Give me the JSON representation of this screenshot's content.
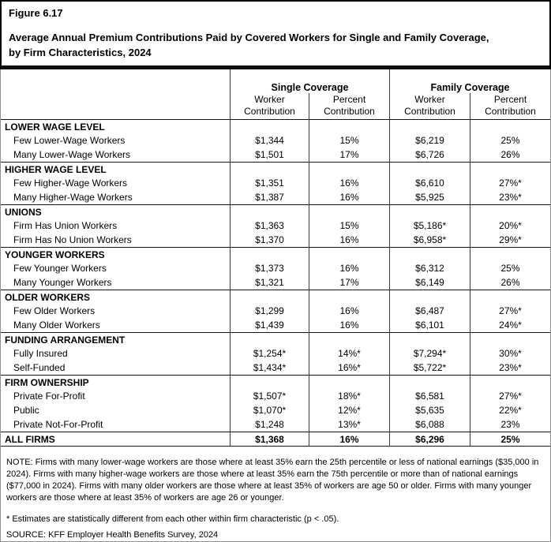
{
  "figure": {
    "number": "Figure 6.17",
    "title": "Average Annual Premium Contributions Paid by Covered Workers for Single and Family Coverage, by Firm Characteristics, 2024"
  },
  "table": {
    "col_groups": [
      {
        "label": "Single Coverage"
      },
      {
        "label": "Family Coverage"
      }
    ],
    "sub_headers": [
      "Worker Contribution",
      "Percent Contribution",
      "Worker Contribution",
      "Percent Contribution"
    ],
    "sections": [
      {
        "header": "LOWER WAGE LEVEL",
        "rows": [
          {
            "label": "Few Lower-Wage Workers",
            "values": [
              "$1,344",
              "15%",
              "$6,219",
              "25%"
            ]
          },
          {
            "label": "Many Lower-Wage Workers",
            "values": [
              "$1,501",
              "17%",
              "$6,726",
              "26%"
            ]
          }
        ]
      },
      {
        "header": "HIGHER WAGE LEVEL",
        "rows": [
          {
            "label": "Few Higher-Wage Workers",
            "values": [
              "$1,351",
              "16%",
              "$6,610",
              "27%*"
            ]
          },
          {
            "label": "Many Higher-Wage Workers",
            "values": [
              "$1,387",
              "16%",
              "$5,925",
              "23%*"
            ]
          }
        ]
      },
      {
        "header": "UNIONS",
        "rows": [
          {
            "label": "Firm Has Union Workers",
            "values": [
              "$1,363",
              "15%",
              "$5,186*",
              "20%*"
            ]
          },
          {
            "label": "Firm Has No Union Workers",
            "values": [
              "$1,370",
              "16%",
              "$6,958*",
              "29%*"
            ]
          }
        ]
      },
      {
        "header": "YOUNGER WORKERS",
        "rows": [
          {
            "label": "Few Younger Workers",
            "values": [
              "$1,373",
              "16%",
              "$6,312",
              "25%"
            ]
          },
          {
            "label": "Many Younger Workers",
            "values": [
              "$1,321",
              "17%",
              "$6,149",
              "26%"
            ]
          }
        ]
      },
      {
        "header": "OLDER WORKERS",
        "rows": [
          {
            "label": "Few Older Workers",
            "values": [
              "$1,299",
              "16%",
              "$6,487",
              "27%*"
            ]
          },
          {
            "label": "Many Older Workers",
            "values": [
              "$1,439",
              "16%",
              "$6,101",
              "24%*"
            ]
          }
        ]
      },
      {
        "header": "FUNDING ARRANGEMENT",
        "rows": [
          {
            "label": "Fully Insured",
            "values": [
              "$1,254*",
              "14%*",
              "$7,294*",
              "30%*"
            ]
          },
          {
            "label": "Self-Funded",
            "values": [
              "$1,434*",
              "16%*",
              "$5,722*",
              "23%*"
            ]
          }
        ]
      },
      {
        "header": "FIRM OWNERSHIP",
        "rows": [
          {
            "label": "Private For-Profit",
            "values": [
              "$1,507*",
              "18%*",
              "$6,581",
              "27%*"
            ]
          },
          {
            "label": "Public",
            "values": [
              "$1,070*",
              "12%*",
              "$5,635",
              "22%*"
            ]
          },
          {
            "label": "Private Not-For-Profit",
            "values": [
              "$1,248",
              "13%*",
              "$6,088",
              "23%"
            ]
          }
        ]
      }
    ],
    "total_row": {
      "label": "ALL FIRMS",
      "values": [
        "$1,368",
        "16%",
        "$6,296",
        "25%"
      ]
    }
  },
  "notes": {
    "note": "NOTE: Firms with many lower-wage workers are those where at least 35% earn the 25th percentile or less of national earnings ($35,000 in 2024). Firms with many higher-wage workers are those where at least 35% earn the 75th percentile or more than of national earnings ($77,000 in 2024). Firms with many older workers are those where at least 35% of workers are age 50 or older. Firms with many younger workers are those where at least 35% of workers are age 26 or younger.",
    "asterisk": " * Estimates are statistically different from each other within firm characteristic (p < .05).",
    "source": "SOURCE: KFF Employer Health Benefits Survey, 2024"
  }
}
